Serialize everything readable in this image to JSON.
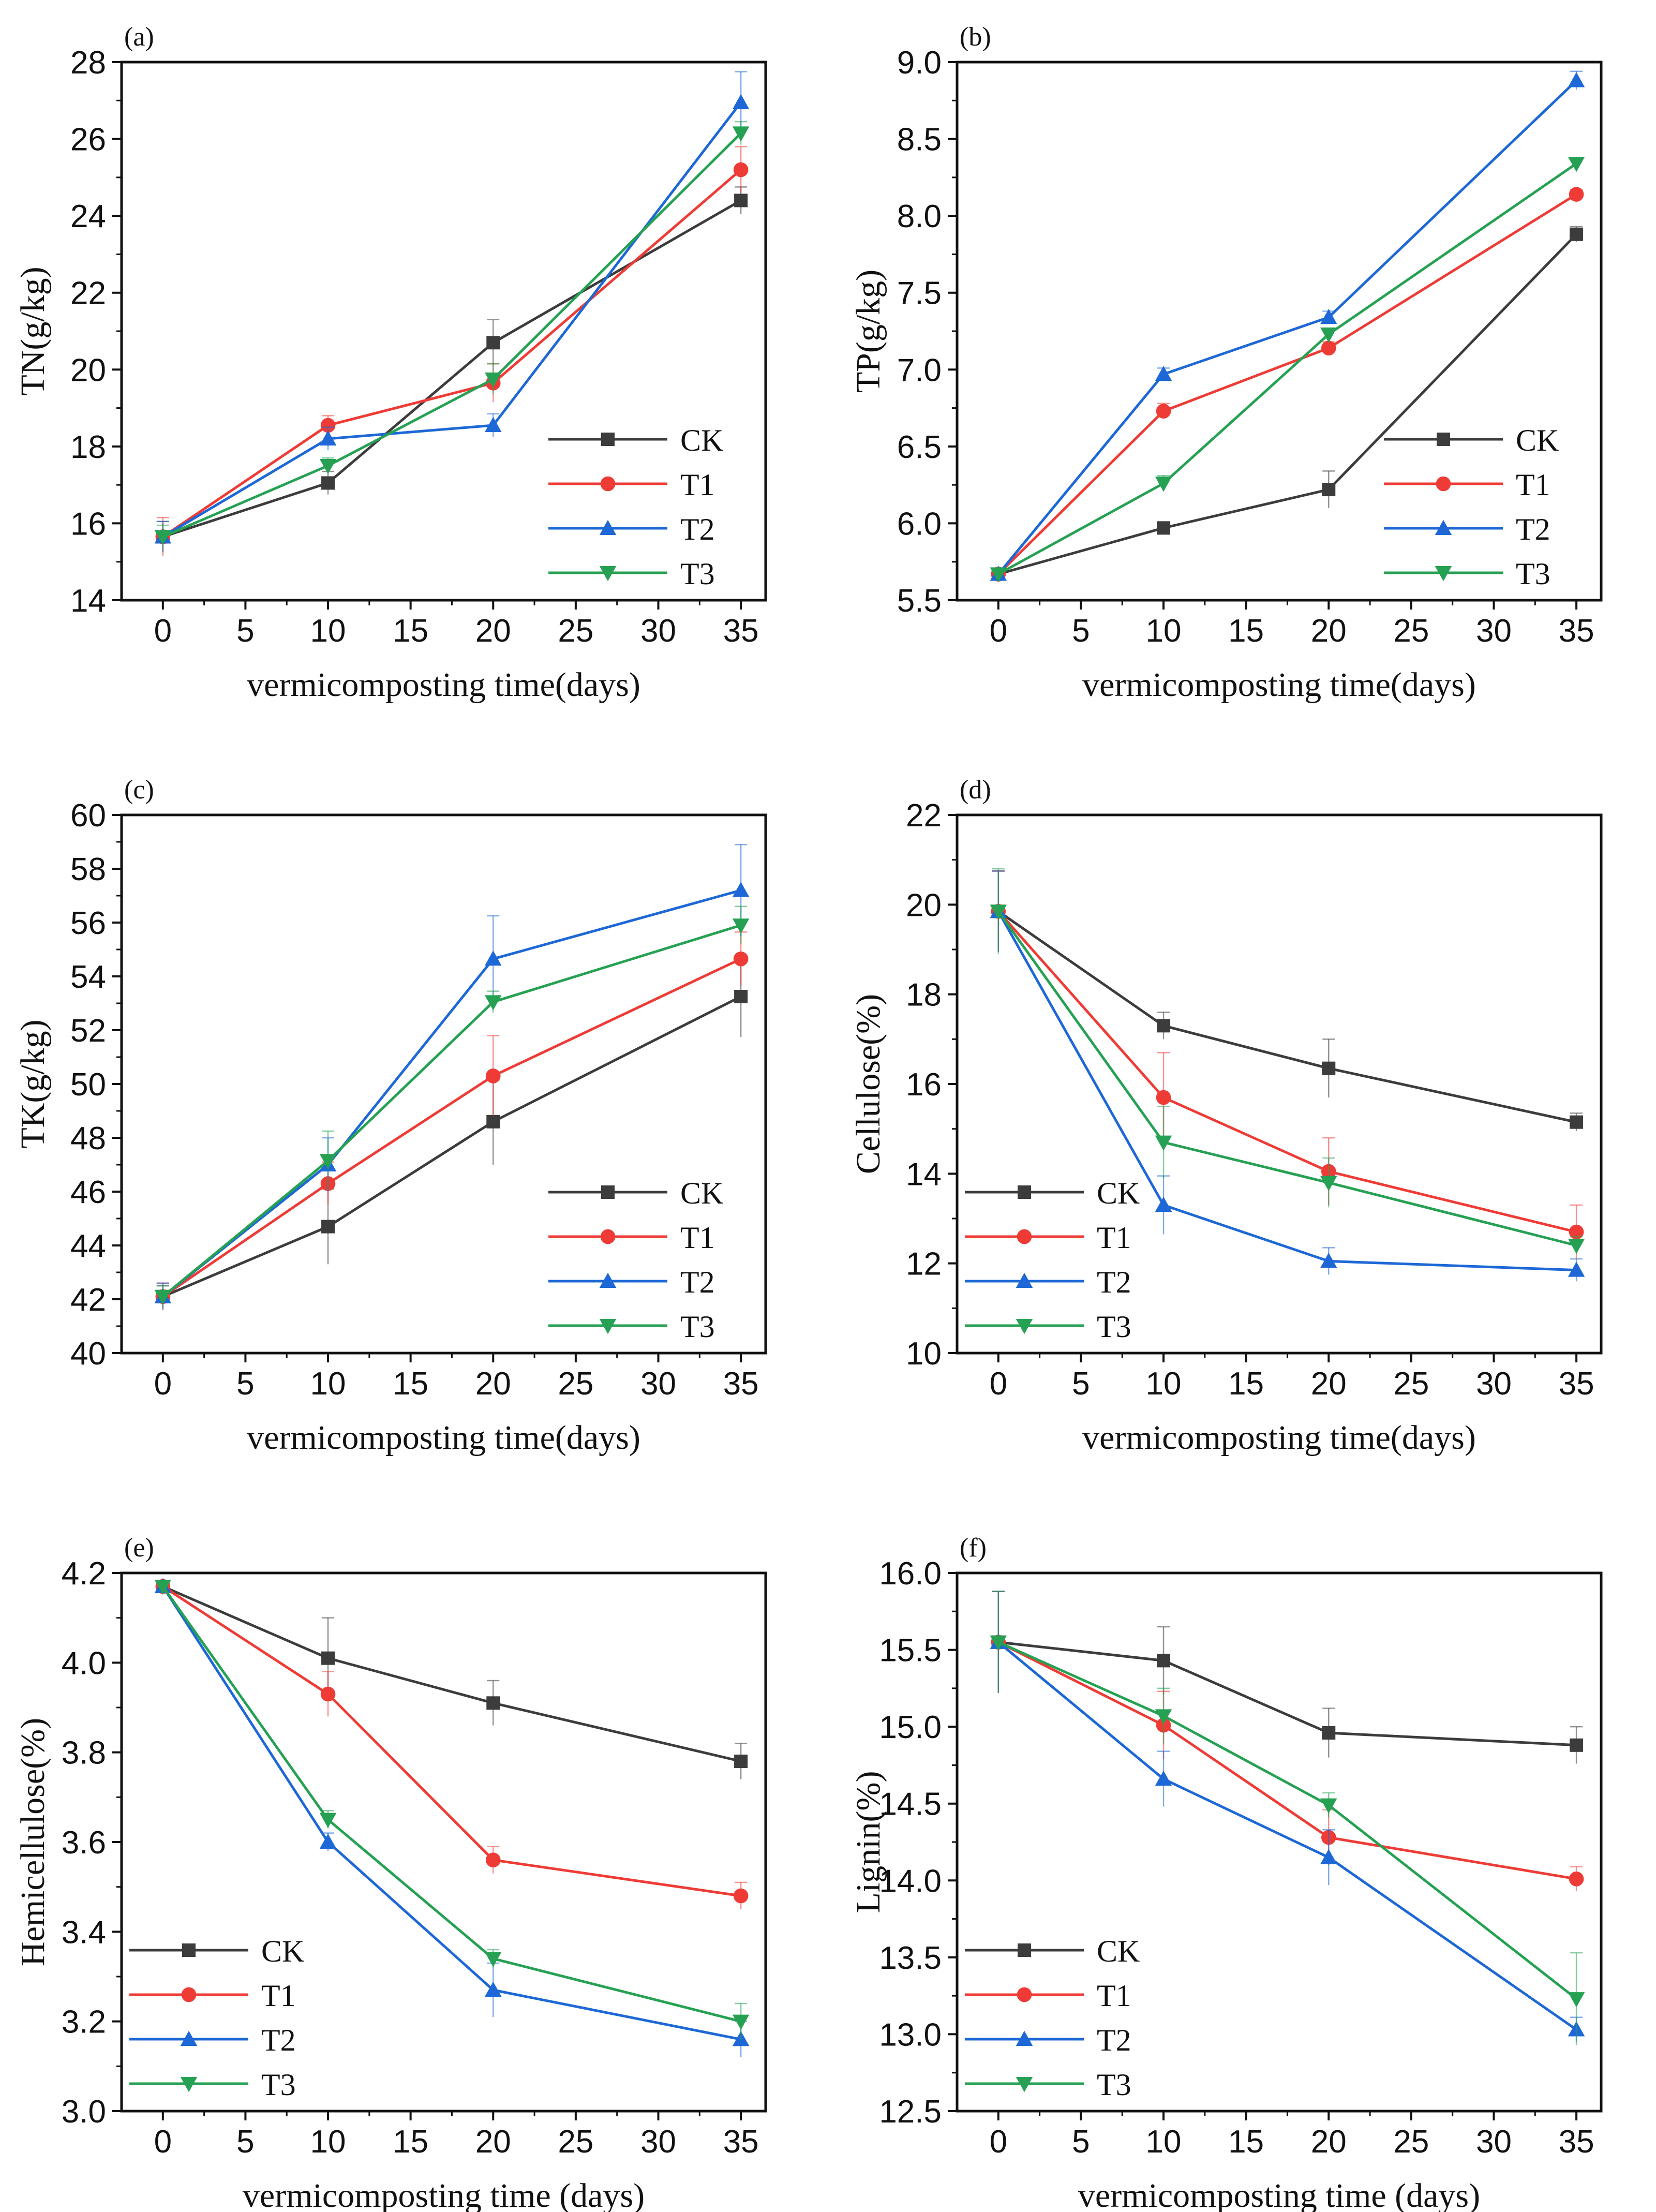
{
  "colors": {
    "CK": "#3c3c3c",
    "T1": "#ef3b36",
    "T2": "#1d68d6",
    "T3": "#26a153",
    "axis": "#111111"
  },
  "chart_data": [
    {
      "panel": "(a)",
      "type": "line",
      "xlabel": "vermicomposting time(days)",
      "ylabel": "TN(g/kg)",
      "xlim": [
        -2.5,
        36.5
      ],
      "ylim": [
        14,
        28
      ],
      "xticks": [
        "0",
        "5",
        "10",
        "15",
        "20",
        "25",
        "30",
        "35"
      ],
      "yticks": [
        "14",
        "16",
        "18",
        "20",
        "22",
        "24",
        "26",
        "28"
      ],
      "legend": "bottom-right",
      "x": [
        0,
        10,
        20,
        35
      ],
      "series": [
        {
          "name": "CK",
          "marker": "square",
          "values": [
            15.65,
            17.05,
            20.7,
            24.4
          ],
          "err": [
            0.4,
            0.3,
            0.6,
            0.35
          ]
        },
        {
          "name": "T1",
          "marker": "circle",
          "values": [
            15.65,
            18.55,
            19.65,
            25.2
          ],
          "err": [
            0.5,
            0.25,
            0.5,
            0.6
          ]
        },
        {
          "name": "T2",
          "marker": "triangle-up",
          "values": [
            15.65,
            18.2,
            18.55,
            26.95
          ],
          "err": [
            0.4,
            0.3,
            0.3,
            0.8
          ]
        },
        {
          "name": "T3",
          "marker": "triangle-down",
          "values": [
            15.65,
            17.5,
            19.75,
            26.15
          ],
          "err": [
            0.3,
            0.2,
            0.4,
            0.3
          ]
        }
      ]
    },
    {
      "panel": "(b)",
      "type": "line",
      "xlabel": "vermicomposting time(days)",
      "ylabel": "TP(g/kg)",
      "xlim": [
        -2.5,
        36.5
      ],
      "ylim": [
        5.5,
        9.0
      ],
      "xticks": [
        "0",
        "5",
        "10",
        "15",
        "20",
        "25",
        "30",
        "35"
      ],
      "yticks": [
        "5.5",
        "6.0",
        "6.5",
        "7.0",
        "7.5",
        "8.0",
        "8.5",
        "9.0"
      ],
      "legend": "bottom-right",
      "x": [
        0,
        10,
        20,
        35
      ],
      "series": [
        {
          "name": "CK",
          "marker": "square",
          "values": [
            5.67,
            5.97,
            6.22,
            7.88
          ],
          "err": [
            0.03,
            0.03,
            0.12,
            0.05
          ]
        },
        {
          "name": "T1",
          "marker": "circle",
          "values": [
            5.67,
            6.73,
            7.14,
            8.14
          ],
          "err": [
            0.03,
            0.05,
            0.04,
            0.03
          ]
        },
        {
          "name": "T2",
          "marker": "triangle-up",
          "values": [
            5.67,
            6.97,
            7.34,
            8.88
          ],
          "err": [
            0.03,
            0.04,
            0.04,
            0.06
          ]
        },
        {
          "name": "T3",
          "marker": "triangle-down",
          "values": [
            5.67,
            6.26,
            7.23,
            8.34
          ],
          "err": [
            0.03,
            0.05,
            0.04,
            0.03
          ]
        }
      ]
    },
    {
      "panel": "(c)",
      "type": "line",
      "xlabel": "vermicomposting time(days)",
      "ylabel": "TK(g/kg)",
      "xlim": [
        -2.5,
        36.5
      ],
      "ylim": [
        40,
        60
      ],
      "xticks": [
        "0",
        "5",
        "10",
        "15",
        "20",
        "25",
        "30",
        "35"
      ],
      "yticks": [
        "40",
        "42",
        "44",
        "46",
        "48",
        "50",
        "52",
        "54",
        "56",
        "58",
        "60"
      ],
      "legend": "bottom-right",
      "x": [
        0,
        10,
        20,
        35
      ],
      "series": [
        {
          "name": "CK",
          "marker": "square",
          "values": [
            42.1,
            44.7,
            48.6,
            53.25
          ],
          "err": [
            0.4,
            1.4,
            1.6,
            1.5
          ]
        },
        {
          "name": "T1",
          "marker": "circle",
          "values": [
            42.1,
            46.3,
            50.3,
            54.65
          ],
          "err": [
            0.5,
            0.8,
            1.5,
            1.0
          ]
        },
        {
          "name": "T2",
          "marker": "triangle-up",
          "values": [
            42.1,
            47.0,
            54.65,
            57.2
          ],
          "err": [
            0.5,
            1.0,
            1.6,
            1.7
          ]
        },
        {
          "name": "T3",
          "marker": "triangle-down",
          "values": [
            42.1,
            47.15,
            53.05,
            55.9
          ],
          "err": [
            0.4,
            1.1,
            0.4,
            0.7
          ]
        }
      ]
    },
    {
      "panel": "(d)",
      "type": "line",
      "xlabel": "vermicomposting time(days)",
      "ylabel": "Cellulose(%)",
      "xlim": [
        -2.5,
        36.5
      ],
      "ylim": [
        10,
        22
      ],
      "xticks": [
        "0",
        "5",
        "10",
        "15",
        "20",
        "25",
        "30",
        "35"
      ],
      "yticks": [
        "10",
        "12",
        "14",
        "16",
        "18",
        "20",
        "22"
      ],
      "legend": "bottom-left",
      "x": [
        0,
        10,
        20,
        35
      ],
      "series": [
        {
          "name": "CK",
          "marker": "square",
          "values": [
            19.85,
            17.3,
            16.35,
            15.15
          ],
          "err": [
            0.9,
            0.3,
            0.65,
            0.2
          ]
        },
        {
          "name": "T1",
          "marker": "circle",
          "values": [
            19.85,
            15.7,
            14.05,
            12.7
          ],
          "err": [
            0.9,
            1.0,
            0.75,
            0.6
          ]
        },
        {
          "name": "T2",
          "marker": "triangle-up",
          "values": [
            19.85,
            13.3,
            12.05,
            11.85
          ],
          "err": [
            0.9,
            0.65,
            0.3,
            0.25
          ]
        },
        {
          "name": "T3",
          "marker": "triangle-down",
          "values": [
            19.85,
            14.7,
            13.8,
            12.4
          ],
          "err": [
            0.95,
            0.8,
            0.55,
            0.2
          ]
        }
      ]
    },
    {
      "panel": "(e)",
      "type": "line",
      "xlabel": "vermicomposting time (days)",
      "ylabel": "Hemicellulose(%)",
      "xlim": [
        -2.5,
        36.5
      ],
      "ylim": [
        3.0,
        4.2
      ],
      "xticks": [
        "0",
        "5",
        "10",
        "15",
        "20",
        "25",
        "30",
        "35"
      ],
      "yticks": [
        "3.0",
        "3.2",
        "3.4",
        "3.6",
        "3.8",
        "4.0",
        "4.2"
      ],
      "legend": "bottom-left",
      "x": [
        0,
        10,
        20,
        35
      ],
      "series": [
        {
          "name": "CK",
          "marker": "square",
          "values": [
            4.17,
            4.01,
            3.91,
            3.78
          ],
          "err": [
            0.01,
            0.09,
            0.05,
            0.04
          ]
        },
        {
          "name": "T1",
          "marker": "circle",
          "values": [
            4.17,
            3.93,
            3.56,
            3.48
          ],
          "err": [
            0.01,
            0.05,
            0.03,
            0.03
          ]
        },
        {
          "name": "T2",
          "marker": "triangle-up",
          "values": [
            4.17,
            3.6,
            3.27,
            3.16
          ],
          "err": [
            0.01,
            0.02,
            0.06,
            0.04
          ]
        },
        {
          "name": "T3",
          "marker": "triangle-down",
          "values": [
            4.17,
            3.65,
            3.34,
            3.2
          ],
          "err": [
            0.01,
            0.02,
            0.02,
            0.04
          ]
        }
      ]
    },
    {
      "panel": "(f)",
      "type": "line",
      "xlabel": "vermicomposting time (days)",
      "ylabel": "Lignin(%)",
      "xlim": [
        -2.5,
        36.5
      ],
      "ylim": [
        12.5,
        16.0
      ],
      "xticks": [
        "0",
        "5",
        "10",
        "15",
        "20",
        "25",
        "30",
        "35"
      ],
      "yticks": [
        "12.5",
        "13.0",
        "13.5",
        "14.0",
        "14.5",
        "15.0",
        "15.5",
        "16.0"
      ],
      "legend": "bottom-left",
      "x": [
        0,
        10,
        20,
        35
      ],
      "series": [
        {
          "name": "CK",
          "marker": "square",
          "values": [
            15.55,
            15.43,
            14.96,
            14.88
          ],
          "err": [
            0.33,
            0.22,
            0.16,
            0.12
          ]
        },
        {
          "name": "T1",
          "marker": "circle",
          "values": [
            15.55,
            15.01,
            14.28,
            14.01
          ],
          "err": [
            0.33,
            0.22,
            0.18,
            0.08
          ]
        },
        {
          "name": "T2",
          "marker": "triangle-up",
          "values": [
            15.55,
            14.66,
            14.15,
            13.03
          ],
          "err": [
            0.33,
            0.18,
            0.18,
            0.08
          ]
        },
        {
          "name": "T3",
          "marker": "triangle-down",
          "values": [
            15.55,
            15.07,
            14.49,
            13.23
          ],
          "err": [
            0.33,
            0.18,
            0.08,
            0.3
          ]
        }
      ]
    }
  ]
}
